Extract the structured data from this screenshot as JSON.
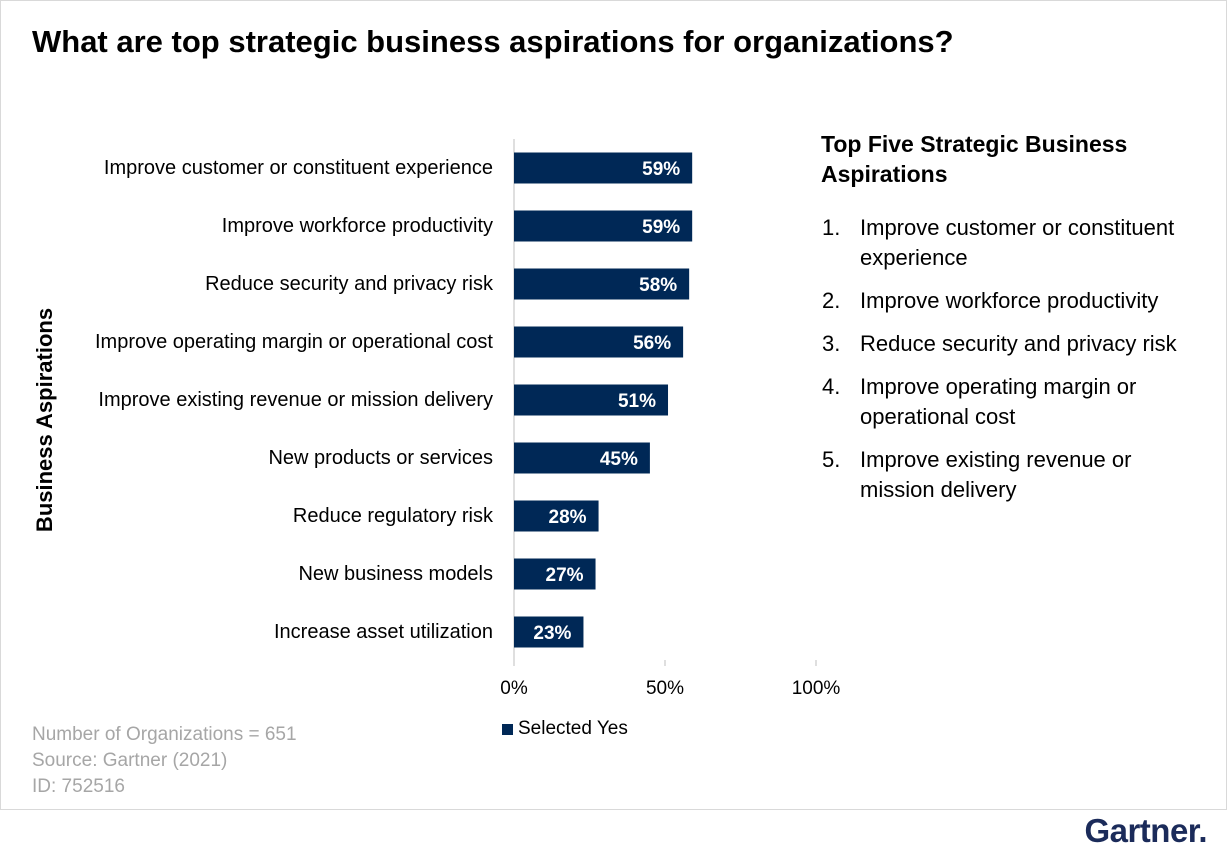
{
  "title": "What are top strategic business aspirations for organizations?",
  "chart_data": {
    "type": "bar",
    "orientation": "horizontal",
    "ylabel": "Business Aspirations",
    "categories": [
      "Improve customer or constituent experience",
      "Improve workforce productivity",
      "Reduce security and privacy risk",
      "Improve operating margin or operational cost",
      "Improve existing revenue or mission delivery",
      "New products or services",
      "Reduce regulatory risk",
      "New business models",
      "Increase asset utilization"
    ],
    "series": [
      {
        "name": "Selected Yes",
        "values": [
          59,
          59,
          58,
          56,
          51,
          45,
          28,
          27,
          23
        ],
        "color": "#002856"
      }
    ],
    "data_labels": [
      "59%",
      "59%",
      "58%",
      "56%",
      "51%",
      "45%",
      "28%",
      "27%",
      "23%"
    ],
    "xlim": [
      0,
      100
    ],
    "x_ticks": [
      "0%",
      "50%",
      "100%"
    ],
    "x_tick_values": [
      0,
      50,
      100
    ],
    "grid": false,
    "legend_position": "bottom"
  },
  "side_panel": {
    "title": "Top Five Strategic Business Aspirations",
    "items": [
      {
        "num": "1.",
        "text": "Improve customer or constituent experience"
      },
      {
        "num": "2.",
        "text": "Improve workforce productivity"
      },
      {
        "num": "3.",
        "text": "Reduce security and privacy risk"
      },
      {
        "num": "4.",
        "text": "Improve operating margin or operational cost"
      },
      {
        "num": "5.",
        "text": "Improve existing revenue or mission delivery"
      }
    ]
  },
  "footer": {
    "line1": "Number of Organizations = 651",
    "line2": "Source: Gartner (2021)",
    "line3": "ID: 752516"
  },
  "brand": {
    "logo_text": "Gartner.",
    "logo_color": "#1b2b5a"
  }
}
